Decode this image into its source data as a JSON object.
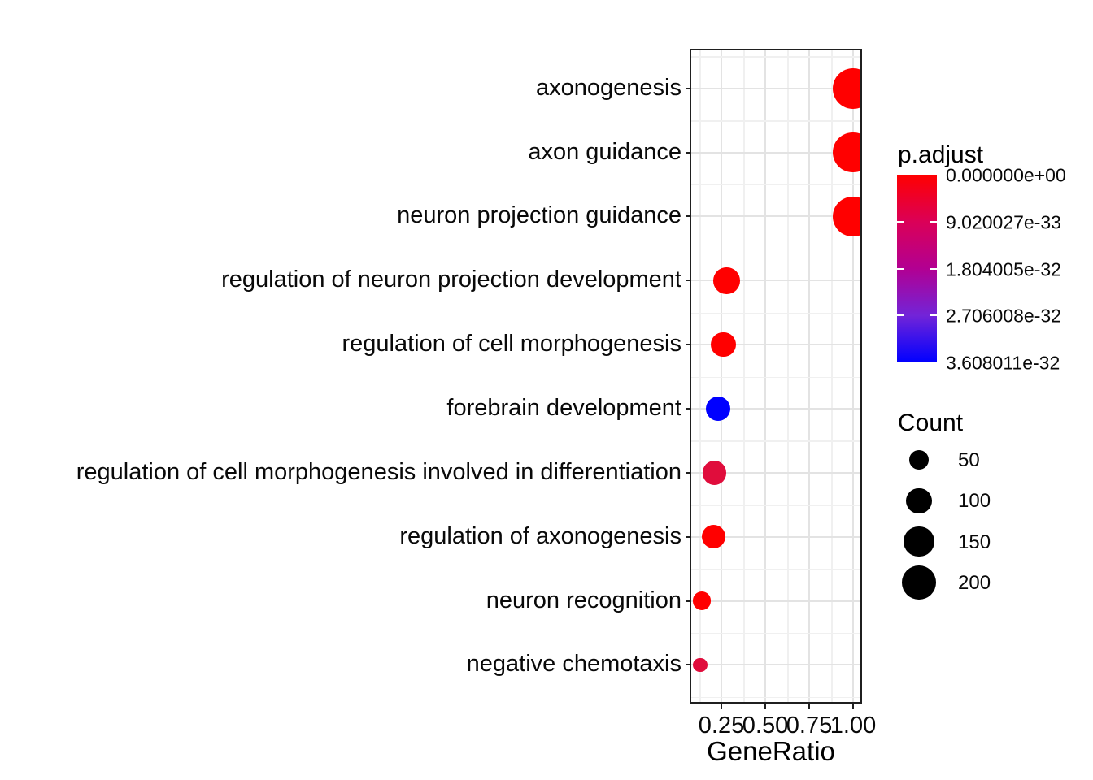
{
  "chart_data": {
    "type": "scatter",
    "title": "",
    "xlabel": "GeneRatio",
    "ylabel": "",
    "x_tick_labels": [
      "0.25",
      "0.50",
      "0.75",
      "1.00"
    ],
    "x_ticks": [
      0.25,
      0.5,
      0.75,
      1.0
    ],
    "xlim": [
      0.08,
      1.04
    ],
    "grid": "on",
    "legend_position": "right",
    "categories": [
      "axonogenesis",
      "axon guidance",
      "neuron projection guidance",
      "regulation of neuron projection development",
      "regulation of cell morphogenesis",
      "forebrain development",
      "regulation of cell morphogenesis involved in differentiation",
      "regulation of axonogenesis",
      "neuron recognition",
      "negative chemotaxis"
    ],
    "points": [
      {
        "label": "axonogenesis",
        "gene_ratio": 1.0,
        "count": 300,
        "p_adjust_approx": 1e-35,
        "color": "#FF0000"
      },
      {
        "label": "axon guidance",
        "gene_ratio": 1.0,
        "count": 300,
        "p_adjust_approx": 1e-35,
        "color": "#FF0000"
      },
      {
        "label": "neuron projection guidance",
        "gene_ratio": 1.0,
        "count": 300,
        "p_adjust_approx": 1e-35,
        "color": "#FF0000"
      },
      {
        "label": "regulation of neuron projection development",
        "gene_ratio": 0.28,
        "count": 110,
        "p_adjust_approx": 1e-35,
        "color": "#FF0000"
      },
      {
        "label": "regulation of cell morphogenesis",
        "gene_ratio": 0.26,
        "count": 95,
        "p_adjust_approx": 1e-35,
        "color": "#FF0000"
      },
      {
        "label": "forebrain development",
        "gene_ratio": 0.23,
        "count": 90,
        "p_adjust_approx": 3.608011e-32,
        "color": "#0000FF"
      },
      {
        "label": "regulation of cell morphogenesis involved in differentiation",
        "gene_ratio": 0.21,
        "count": 85,
        "p_adjust_approx": 5e-33,
        "color": "#E00D3C"
      },
      {
        "label": "regulation of axonogenesis",
        "gene_ratio": 0.205,
        "count": 85,
        "p_adjust_approx": 1e-35,
        "color": "#FF0000"
      },
      {
        "label": "neuron recognition",
        "gene_ratio": 0.14,
        "count": 40,
        "p_adjust_approx": 1e-35,
        "color": "#FF0000"
      },
      {
        "label": "negative chemotaxis",
        "gene_ratio": 0.13,
        "count": 20,
        "p_adjust_approx": 5e-33,
        "color": "#E00D3C"
      }
    ]
  },
  "legends": {
    "color": {
      "title": "p.adjust",
      "tick_labels": [
        "0.000000e+00",
        "9.020027e-33",
        "1.804005e-32",
        "2.706008e-32",
        "3.608011e-32"
      ],
      "gradient_stops": [
        "#FF0000",
        "#DB0057",
        "#B20092",
        "#7224D8",
        "#0000FF"
      ]
    },
    "size": {
      "title": "Count",
      "entries": [
        "50",
        "100",
        "150",
        "200"
      ],
      "entry_values": [
        50,
        100,
        150,
        200
      ],
      "circle_color": "#000000"
    }
  }
}
